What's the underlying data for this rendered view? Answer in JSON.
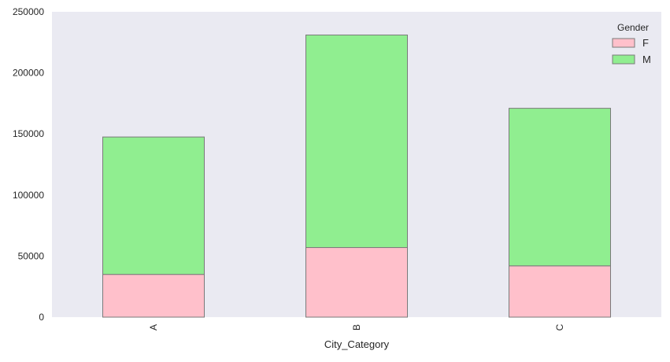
{
  "chart_data": {
    "type": "bar",
    "stacked": true,
    "categories": [
      "A",
      "B",
      "C"
    ],
    "series": [
      {
        "name": "F",
        "values": [
          35000,
          57000,
          42000
        ],
        "color": "#ffc0cb"
      },
      {
        "name": "M",
        "values": [
          112500,
          174000,
          129000
        ],
        "color": "#90ee90"
      }
    ],
    "xlabel": "City_Category",
    "ylabel": "",
    "ylim": [
      0,
      250000
    ],
    "yticks": [
      "0",
      "50000",
      "100000",
      "150000",
      "200000",
      "250000"
    ],
    "legend": {
      "title": "Gender",
      "placement": "top-right"
    },
    "grid": false,
    "background": "#eaeaf2",
    "bar_edge_color": "#7a7a7a"
  }
}
